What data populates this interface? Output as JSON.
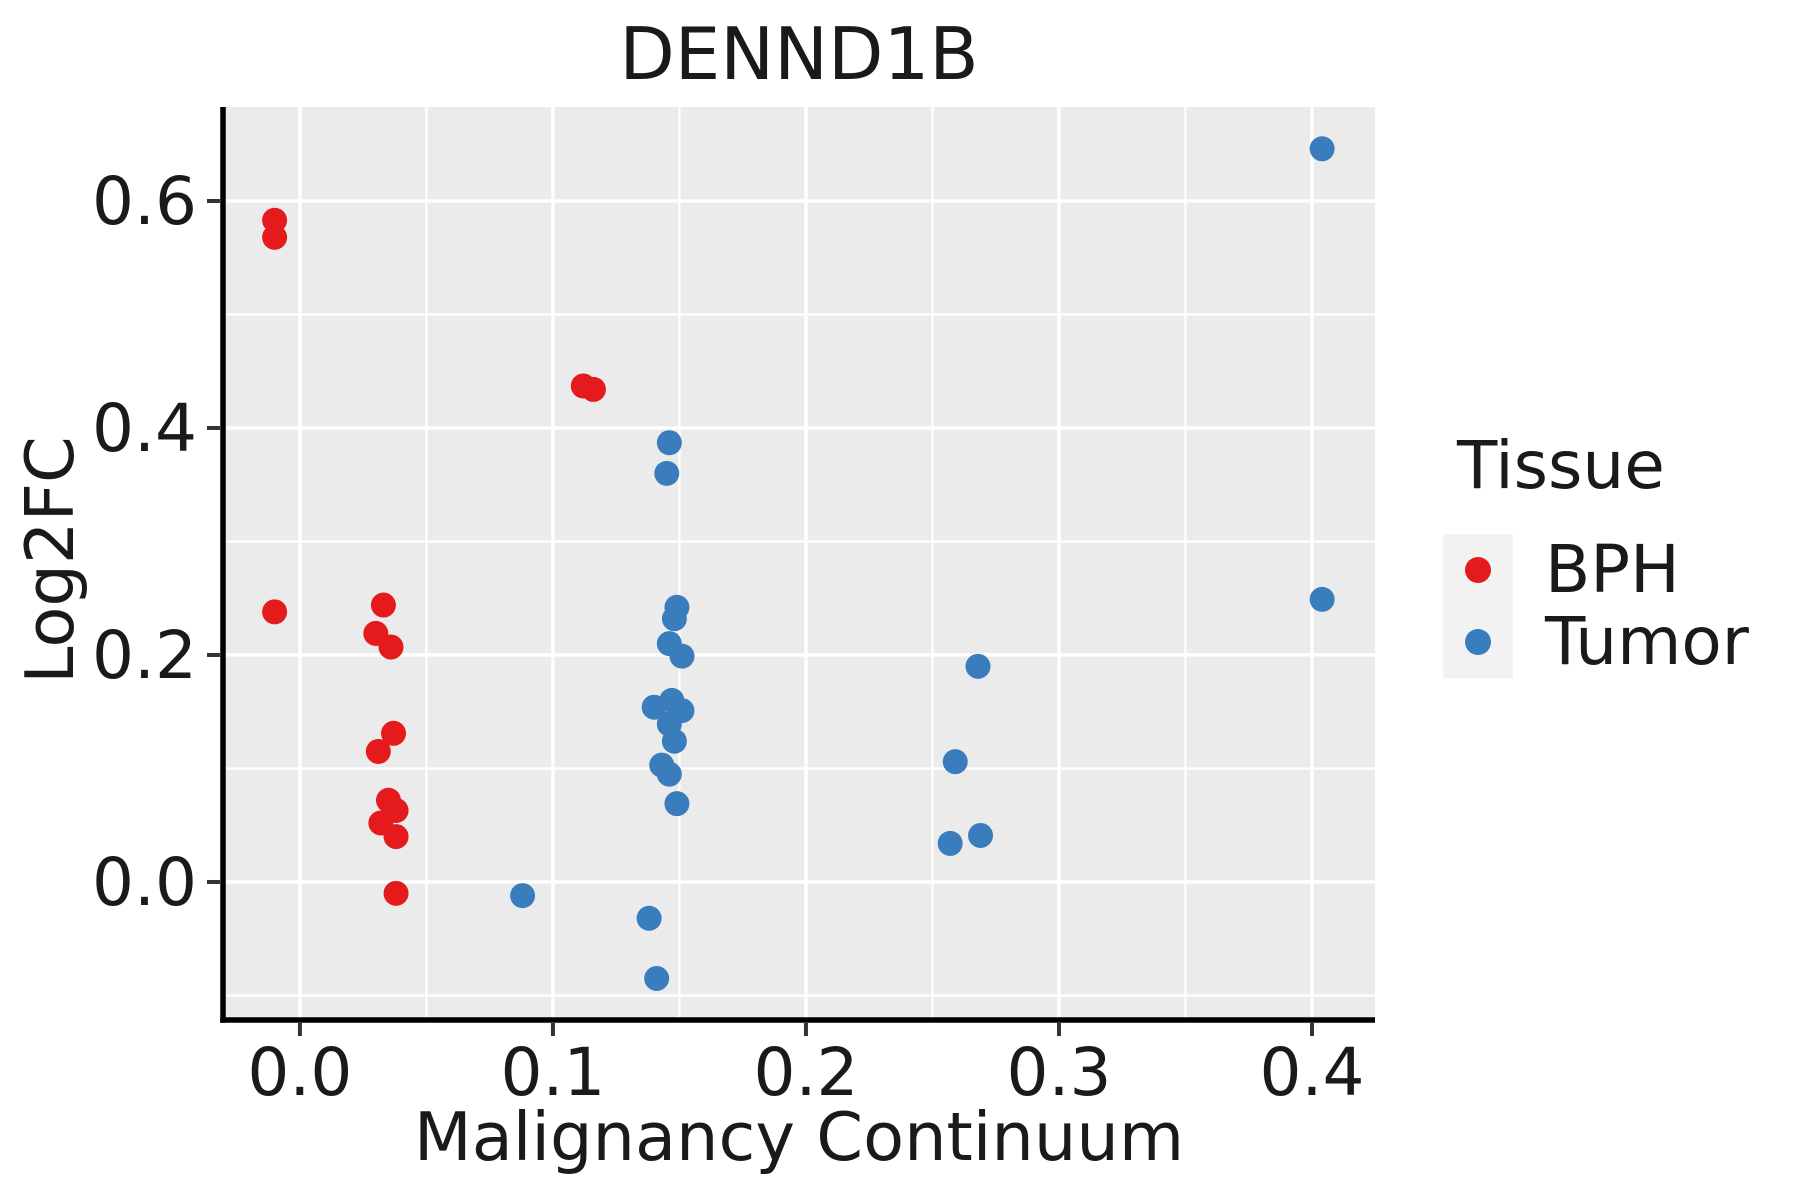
{
  "title": "DENND1B",
  "axes": {
    "x_title": "Malignancy Continuum",
    "y_title": "Log2FC"
  },
  "legend": {
    "title": "Tissue",
    "entries": [
      {
        "label": "BPH",
        "color": "#E41A1C"
      },
      {
        "label": "Tumor",
        "color": "#3A7DBC"
      }
    ]
  },
  "colors": {
    "panel_background": "#EBEBEB",
    "grid_line": "#FFFFFF",
    "axis_line": "#000000",
    "tick_mark": "#333333",
    "text": "#1a1a1a",
    "legend_key_background": "#F2F2F2",
    "bph_red": "#E41A1C",
    "tumor_blue": "#3A7DBC"
  },
  "chart_data": {
    "type": "scatter",
    "title": "DENND1B",
    "xlabel": "Malignancy Continuum",
    "ylabel": "Log2FC",
    "xlim": [
      -0.0304,
      0.4249
    ],
    "ylim": [
      -0.1216,
      0.6828
    ],
    "x_major_ticks": [
      0.0,
      0.1,
      0.2,
      0.3,
      0.4
    ],
    "x_tick_labels": [
      "0.0",
      "0.1",
      "0.2",
      "0.3",
      "0.4"
    ],
    "x_minor_ticks": [
      0.05,
      0.15,
      0.25,
      0.35
    ],
    "y_major_ticks": [
      0.0,
      0.2,
      0.4,
      0.6
    ],
    "y_tick_labels": [
      "0.0",
      "0.2",
      "0.4",
      "0.6"
    ],
    "y_minor_ticks": [
      -0.1,
      0.1,
      0.3,
      0.5
    ],
    "grid": "white major and minor gridlines on grey panel",
    "legend_position": "right",
    "legend_title": "Tissue",
    "series": [
      {
        "name": "BPH",
        "color": "#E41A1C",
        "points": [
          [
            -0.01,
            0.583
          ],
          [
            -0.01,
            0.568
          ],
          [
            -0.01,
            0.238
          ],
          [
            0.033,
            0.244
          ],
          [
            0.03,
            0.219
          ],
          [
            0.036,
            0.207
          ],
          [
            0.112,
            0.437
          ],
          [
            0.116,
            0.434
          ],
          [
            0.037,
            0.131
          ],
          [
            0.031,
            0.115
          ],
          [
            0.035,
            0.072
          ],
          [
            0.038,
            0.063
          ],
          [
            0.032,
            0.052
          ],
          [
            0.038,
            0.04
          ],
          [
            0.038,
            -0.01
          ]
        ]
      },
      {
        "name": "Tumor",
        "color": "#3A7DBC",
        "points": [
          [
            0.404,
            0.646
          ],
          [
            0.404,
            0.249
          ],
          [
            0.146,
            0.387
          ],
          [
            0.145,
            0.36
          ],
          [
            0.149,
            0.242
          ],
          [
            0.148,
            0.232
          ],
          [
            0.146,
            0.21
          ],
          [
            0.151,
            0.199
          ],
          [
            0.268,
            0.19
          ],
          [
            0.147,
            0.16
          ],
          [
            0.14,
            0.154
          ],
          [
            0.151,
            0.151
          ],
          [
            0.146,
            0.139
          ],
          [
            0.148,
            0.124
          ],
          [
            0.259,
            0.106
          ],
          [
            0.143,
            0.103
          ],
          [
            0.146,
            0.095
          ],
          [
            0.149,
            0.069
          ],
          [
            0.269,
            0.041
          ],
          [
            0.257,
            0.034
          ],
          [
            0.088,
            -0.012
          ],
          [
            0.138,
            -0.032
          ],
          [
            0.141,
            -0.085
          ]
        ]
      }
    ]
  }
}
